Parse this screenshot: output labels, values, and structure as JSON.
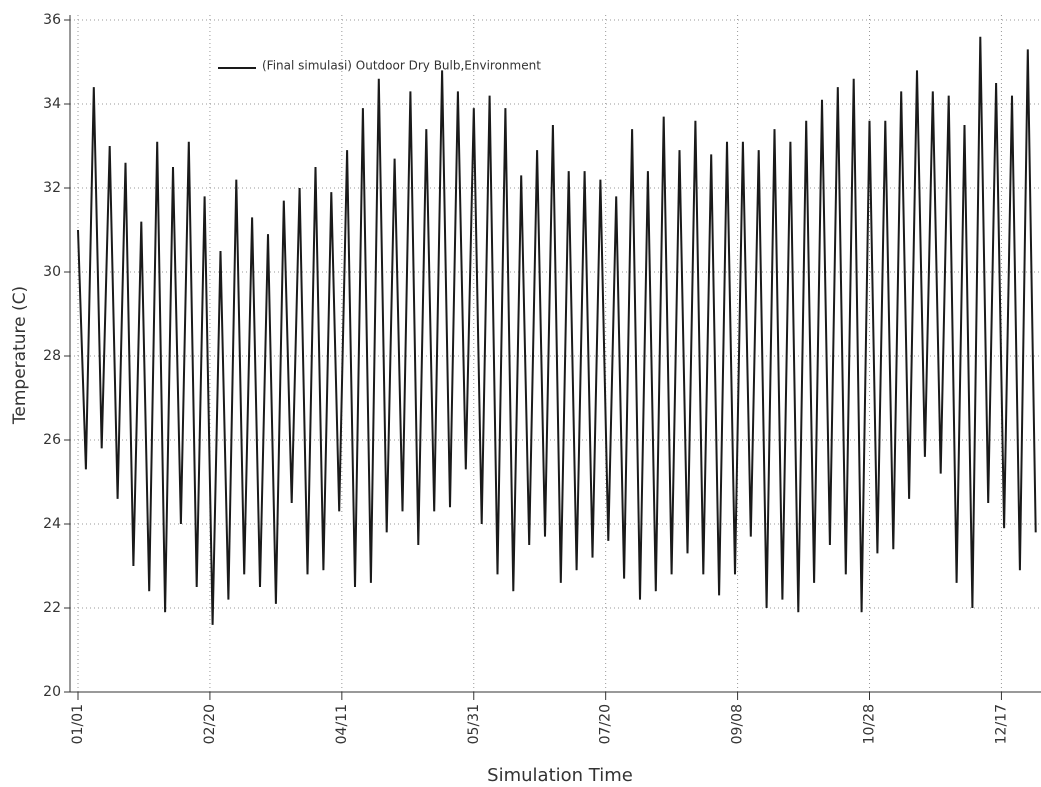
{
  "chart_data": {
    "type": "line",
    "y_label": "Temperature (C)",
    "x_label": "Simulation Time",
    "x": [
      0,
      3,
      6,
      9,
      12,
      15,
      18,
      21,
      24,
      27,
      30,
      33,
      36,
      39,
      42,
      45,
      48,
      51,
      54,
      57,
      60,
      63,
      66,
      69,
      72,
      75,
      78,
      81,
      84,
      87,
      90,
      93,
      96,
      99,
      102,
      105,
      108,
      111,
      114,
      117,
      120,
      123,
      126,
      129,
      132,
      135,
      138,
      141,
      144,
      147,
      150,
      153,
      156,
      159,
      162,
      165,
      168,
      171,
      174,
      177,
      180,
      183,
      186,
      189,
      192,
      195,
      198,
      201,
      204,
      207,
      210,
      213,
      216,
      219,
      222,
      225,
      228,
      231,
      234,
      237,
      240,
      243,
      246,
      249,
      252,
      255,
      258,
      261,
      264,
      267,
      270,
      273,
      276,
      279,
      282,
      285,
      288,
      291,
      294,
      297,
      300,
      303,
      306,
      309,
      312,
      315,
      318,
      321,
      324,
      327,
      330,
      333,
      336,
      339,
      342,
      345,
      348,
      351,
      354,
      357,
      360,
      363
    ],
    "series": [
      {
        "name": "(Final simulasi) Outdoor Dry Bulb,Environment",
        "color": "#1a1a1a",
        "values": [
          31,
          25.3,
          34.4,
          25.8,
          33,
          24.6,
          32.6,
          23,
          31.2,
          22.4,
          33.1,
          21.9,
          32.5,
          24,
          33.1,
          22.5,
          31.8,
          21.6,
          30.5,
          22.2,
          32.2,
          22.8,
          31.3,
          22.5,
          30.9,
          22.1,
          31.7,
          24.5,
          32,
          22.8,
          32.5,
          22.9,
          31.9,
          24.3,
          32.9,
          22.5,
          33.9,
          22.6,
          34.6,
          23.8,
          32.7,
          24.3,
          34.3,
          23.5,
          33.4,
          24.3,
          34.8,
          24.4,
          34.3,
          25.3,
          33.9,
          24,
          34.2,
          22.8,
          33.9,
          22.4,
          32.3,
          23.5,
          32.9,
          23.7,
          33.5,
          22.6,
          32.4,
          22.9,
          32.4,
          23.2,
          32.2,
          23.6,
          31.8,
          22.7,
          33.4,
          22.2,
          32.4,
          22.4,
          33.7,
          22.8,
          32.9,
          23.3,
          33.6,
          22.8,
          32.8,
          22.3,
          33.1,
          22.8,
          33.1,
          23.7,
          32.9,
          22,
          33.4,
          22.2,
          33.1,
          21.9,
          33.6,
          22.6,
          34.1,
          23.5,
          34.4,
          22.8,
          34.6,
          21.9,
          33.6,
          23.3,
          33.6,
          23.4,
          34.3,
          24.6,
          34.8,
          25.6,
          34.3,
          25.2,
          34.2,
          22.6,
          33.5,
          22,
          35.6,
          24.5,
          34.5,
          23.9,
          34.2,
          22.9,
          35.3,
          23.8
        ]
      }
    ],
    "xlim": [
      0,
      365
    ],
    "ylim": [
      20,
      36
    ],
    "xticks": [
      {
        "value": 0,
        "label": "01/01"
      },
      {
        "value": 50,
        "label": "02/20"
      },
      {
        "value": 100,
        "label": "04/11"
      },
      {
        "value": 150,
        "label": "05/31"
      },
      {
        "value": 200,
        "label": "07/20"
      },
      {
        "value": 250,
        "label": "09/08"
      },
      {
        "value": 300,
        "label": "10/28"
      },
      {
        "value": 350,
        "label": "12/17"
      }
    ],
    "yticks": [
      20,
      22,
      24,
      26,
      28,
      30,
      32,
      34,
      36
    ],
    "grid": true
  }
}
